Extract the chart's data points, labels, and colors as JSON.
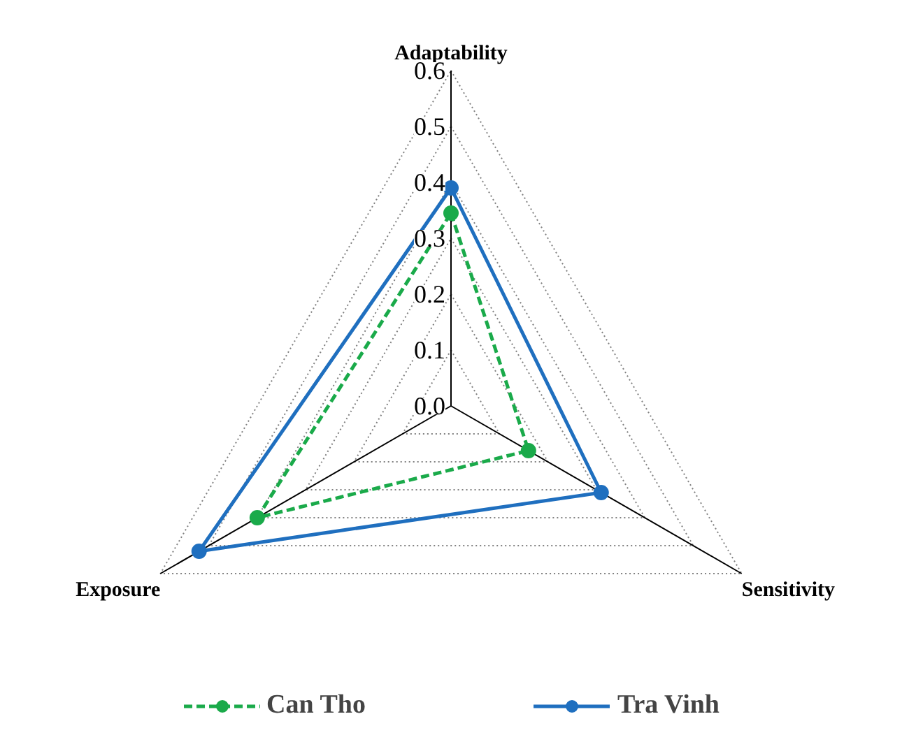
{
  "chart_data": {
    "type": "radar",
    "categories": [
      "Adaptability",
      "Sensitivity",
      "Exposure"
    ],
    "series": [
      {
        "name": "Can Tho",
        "color": "#1aaa4a",
        "values": [
          0.345,
          0.16,
          0.4
        ],
        "line_style": "dashed"
      },
      {
        "name": "Tra Vinh",
        "color": "#1f6fbf",
        "values": [
          0.39,
          0.31,
          0.52
        ],
        "line_style": "solid"
      }
    ],
    "ylim": [
      0,
      0.6
    ],
    "yticks": [
      {
        "value": 0,
        "label": "0.0"
      },
      0.1,
      0.2,
      0.3,
      0.4,
      0.5,
      0.6
    ],
    "grid": true,
    "legend": "bottom",
    "marker": "circle"
  }
}
